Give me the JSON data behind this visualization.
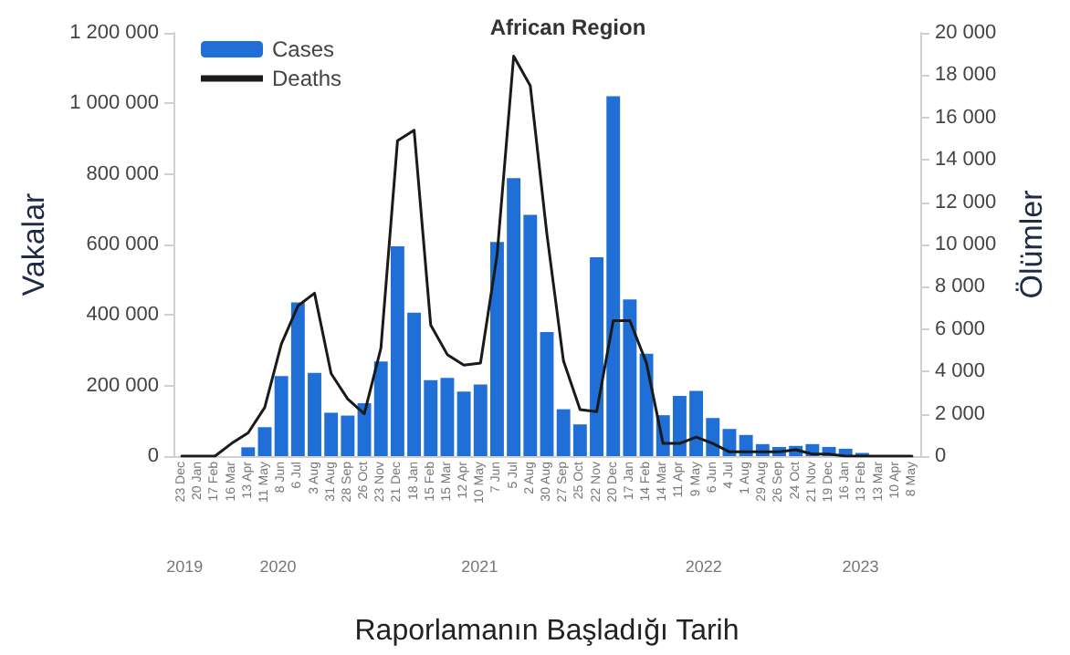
{
  "chart_data": {
    "type": "bar",
    "title": "African Region",
    "xlabel": "Raporlamanın Başladığı Tarih",
    "ylabel": "Vakalar",
    "y2label": "Ölümler",
    "categories": [
      "23 Dec",
      "20 Jan",
      "17 Feb",
      "16 Mar",
      "13 Apr",
      "11 May",
      "8 Jun",
      "6 Jul",
      "3 Aug",
      "31 Aug",
      "28 Sep",
      "26 Oct",
      "23 Nov",
      "21 Dec",
      "18 Jan",
      "15 Feb",
      "15 Mar",
      "12 Apr",
      "10 May",
      "7 Jun",
      "5 Jul",
      "2 Aug",
      "30 Aug",
      "27 Sep",
      "25 Oct",
      "22 Nov",
      "20 Dec",
      "17 Jan",
      "14 Feb",
      "14 Mar",
      "11 Apr",
      "9 May",
      "6 Jun",
      "4 Jul",
      "1 Aug",
      "29 Aug",
      "26 Sep",
      "24 Oct",
      "21 Nov",
      "19 Dec",
      "16 Jan",
      "13 Feb",
      "13 Mar",
      "10 Apr",
      "8 May"
    ],
    "series": [
      {
        "name": "Cases",
        "color": "#1f6fd6",
        "values": [
          0,
          0,
          0,
          0,
          25000,
          82000,
          227000,
          436000,
          236000,
          123000,
          115000,
          150000,
          268000,
          595000,
          407000,
          215000,
          222000,
          183000,
          203000,
          607000,
          788000,
          684000,
          352000,
          133000,
          90000,
          564000,
          1020000,
          444000,
          290000,
          116000,
          171000,
          185000,
          108000,
          77000,
          60000,
          34000,
          26000,
          29000,
          34000,
          26000,
          21000,
          9000,
          2000,
          1000,
          null
        ]
      },
      {
        "name": "Deaths",
        "type": "line",
        "axis": "y2",
        "color": "#1a1a1a",
        "values": [
          0,
          0,
          0,
          600,
          1100,
          2300,
          5300,
          7100,
          7700,
          3900,
          2700,
          2000,
          5100,
          14900,
          15400,
          6200,
          4800,
          4300,
          4400,
          9500,
          18900,
          17500,
          10500,
          4500,
          2200,
          2100,
          6400,
          6400,
          4400,
          600,
          600,
          900,
          600,
          200,
          200,
          200,
          200,
          300,
          100,
          100,
          0,
          0,
          0,
          0,
          0
        ]
      }
    ],
    "ylim": [
      0,
      1200000
    ],
    "yticks": [
      0,
      200000,
      400000,
      600000,
      800000,
      1000000,
      1200000
    ],
    "y2lim": [
      0,
      20000
    ],
    "y2ticks": [
      0,
      2000,
      4000,
      6000,
      8000,
      10000,
      12000,
      14000,
      16000,
      18000,
      20000
    ],
    "legend": "top left",
    "grid": false,
    "marker": "none",
    "line_style": "solid",
    "annotations": [
      "2019",
      "2020",
      "2021",
      "2022",
      "2023"
    ]
  }
}
